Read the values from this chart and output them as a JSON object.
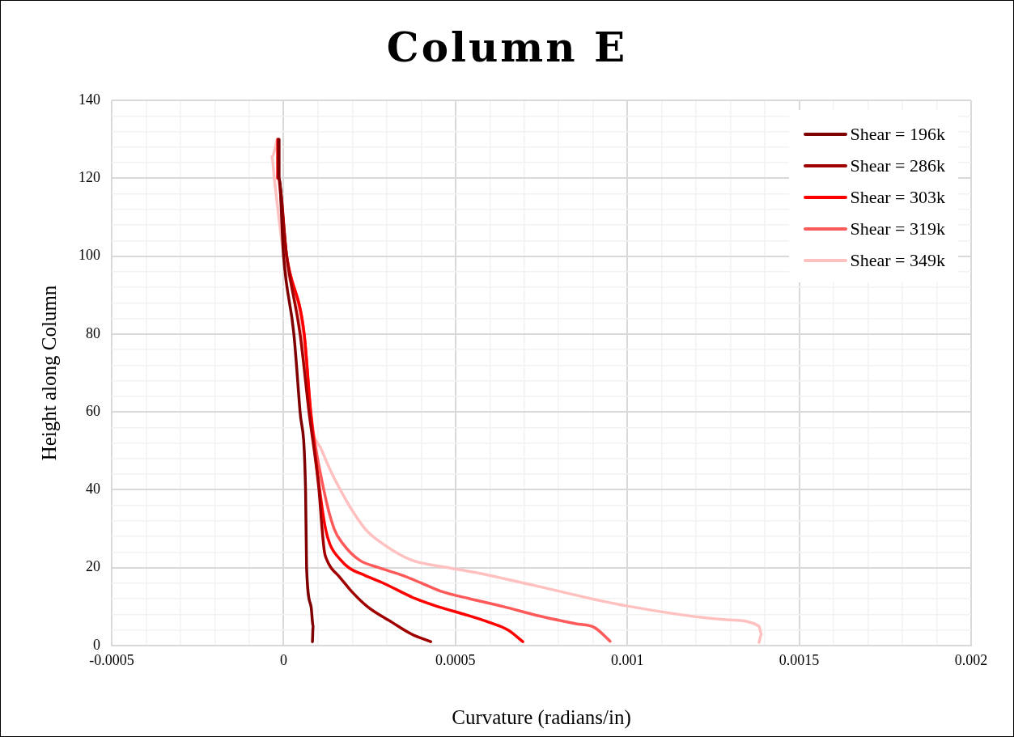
{
  "chart_data": {
    "type": "line",
    "title": "Column E",
    "xlabel": "Curvature (radians/in)",
    "ylabel": "Height along Column",
    "xlim": [
      -0.0005,
      0.002
    ],
    "ylim": [
      0,
      140
    ],
    "xticks": [
      -0.0005,
      {
        "value": -0.0004,
        "label": null
      },
      {
        "value": -0.0003,
        "label": null
      },
      {
        "value": -0.0002,
        "label": null
      },
      {
        "value": -0.0001,
        "label": null
      },
      0,
      {
        "value": 0.0001,
        "label": null
      },
      {
        "value": 0.0002,
        "label": null
      },
      {
        "value": 0.0003,
        "label": null
      },
      {
        "value": 0.0004,
        "label": null
      },
      0.0005,
      {
        "value": 0.0006,
        "label": null
      },
      {
        "value": 0.0007,
        "label": null
      },
      {
        "value": 0.0008,
        "label": null
      },
      {
        "value": 0.0009,
        "label": null
      },
      0.001,
      {
        "value": 0.0011,
        "label": null
      },
      {
        "value": 0.0012,
        "label": null
      },
      {
        "value": 0.0013,
        "label": null
      },
      {
        "value": 0.0014,
        "label": null
      },
      0.0015,
      {
        "value": 0.0016,
        "label": null
      },
      {
        "value": 0.0017,
        "label": null
      },
      {
        "value": 0.0018,
        "label": null
      },
      {
        "value": 0.0019,
        "label": null
      },
      0.002
    ],
    "yticks": [
      0,
      {
        "value": 4,
        "label": null
      },
      {
        "value": 8,
        "label": null
      },
      {
        "value": 12,
        "label": null
      },
      {
        "value": 16,
        "label": null
      },
      20,
      {
        "value": 24,
        "label": null
      },
      {
        "value": 28,
        "label": null
      },
      {
        "value": 32,
        "label": null
      },
      {
        "value": 36,
        "label": null
      },
      40,
      {
        "value": 44,
        "label": null
      },
      {
        "value": 48,
        "label": null
      },
      {
        "value": 52,
        "label": null
      },
      {
        "value": 56,
        "label": null
      },
      60,
      {
        "value": 64,
        "label": null
      },
      {
        "value": 68,
        "label": null
      },
      {
        "value": 72,
        "label": null
      },
      {
        "value": 76,
        "label": null
      },
      80,
      {
        "value": 84,
        "label": null
      },
      {
        "value": 88,
        "label": null
      },
      {
        "value": 92,
        "label": null
      },
      {
        "value": 96,
        "label": null
      },
      100,
      {
        "value": 104,
        "label": null
      },
      {
        "value": 108,
        "label": null
      },
      {
        "value": 112,
        "label": null
      },
      {
        "value": 116,
        "label": null
      },
      120,
      {
        "value": 124,
        "label": null
      },
      {
        "value": 128,
        "label": null
      },
      {
        "value": 132,
        "label": null
      },
      {
        "value": 136,
        "label": null
      },
      140
    ],
    "grid": true,
    "legend": "top right",
    "marker": "none",
    "line_style": "solid",
    "series": [
      {
        "name": "Shear = 196k",
        "color": "#7f0000",
        "x": [
          -1.3e-05,
          -1.3e-05,
          0,
          3e-05,
          4.8e-05,
          6.4e-05,
          6.7e-05,
          8e-05,
          8.6e-05,
          8.4e-05
        ],
        "values": [
          130,
          120,
          100,
          80,
          60,
          40,
          20,
          10,
          5,
          1
        ]
      },
      {
        "name": "Shear = 286k",
        "color": "#a00000",
        "x": [
          -1.5e-05,
          -1.5e-05,
          9e-06,
          4.8e-05,
          7.4e-05,
          0.000103,
          0.000112,
          0.000119,
          0.000126,
          0.000138,
          0.000159,
          0.000197,
          0.000244,
          0.000315,
          0.000371,
          0.000428
        ],
        "values": [
          130,
          120,
          100,
          80,
          60,
          40,
          30,
          24,
          22,
          20,
          18,
          14,
          10,
          6,
          3,
          1
        ]
      },
      {
        "name": "Shear = 303k",
        "color": "#ff0000",
        "x": [
          -1.6e-05,
          -1.6e-05,
          9e-06,
          6e-05,
          7.9e-05,
          0.000105,
          0.000122,
          0.000135,
          0.000166,
          0.00019,
          0.000237,
          0.000291,
          0.000385,
          0.000449,
          0.000527,
          0.000597,
          0.000653,
          0.000696
        ],
        "values": [
          130,
          120,
          100,
          80,
          60,
          40,
          30,
          26,
          22,
          20,
          18,
          16,
          12,
          10,
          8,
          6,
          4,
          1
        ]
      },
      {
        "name": "Shear = 319k",
        "color": "#ff5a5a",
        "x": [
          -1.8e-05,
          -1.8e-05,
          9e-06,
          6e-05,
          7.9e-05,
          0.000117,
          0.000147,
          0.000174,
          0.00022,
          0.000277,
          0.000347,
          0.000402,
          0.000456,
          0.000543,
          0.00064,
          0.00074,
          0.00085,
          0.000905,
          0.00095
        ],
        "values": [
          130,
          120,
          100,
          80,
          60,
          40,
          30,
          26,
          22,
          20,
          18,
          16,
          14,
          12,
          10,
          7.7,
          5.6,
          4.6,
          1.1
        ]
      },
      {
        "name": "Shear = 349k",
        "color": "#ffc0c0",
        "x": [
          -1.8e-05,
          -3.4e-05,
          -2.7e-05,
          1e-06,
          5.6e-05,
          7.4e-05,
          0.000112,
          0.000165,
          0.000237,
          0.000291,
          0.000371,
          0.00048,
          0.000574,
          0.000731,
          0.000997,
          0.001296,
          0.001383,
          0.00139,
          0.001383
        ],
        "values": [
          130,
          125.5,
          120,
          100,
          80,
          60,
          50,
          40,
          30,
          26,
          22,
          20,
          18.5,
          15.4,
          10.2,
          6.6,
          5,
          2.9,
          0.8
        ]
      }
    ]
  }
}
